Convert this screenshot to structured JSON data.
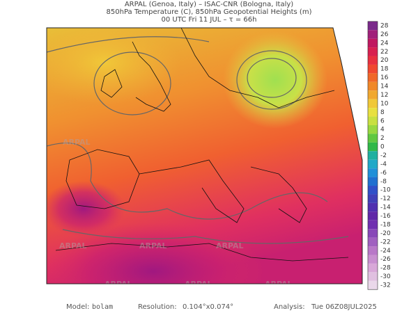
{
  "header": {
    "lines": [
      "ARPAL (Genoa, Italy)  –  ISAC-CNR (Bologna, Italy)",
      "850hPa Temperature (C), 850hPa Geopotential Heights (m)",
      "00 UTC Fri 11 JUL  –  τ = 66h"
    ]
  },
  "map": {
    "watermark": "ARPAL"
  },
  "colorbar": {
    "labels": [
      "28",
      "26",
      "24",
      "22",
      "20",
      "18",
      "16",
      "14",
      "12",
      "10",
      "8",
      "6",
      "4",
      "2",
      "0",
      "-2",
      "-4",
      "-6",
      "-8",
      "-10",
      "-12",
      "-14",
      "-16",
      "-18",
      "-20",
      "-22",
      "-24",
      "-26",
      "-28",
      "-30",
      "-32"
    ],
    "colors": [
      "#7a2a8a",
      "#a0207a",
      "#c01860",
      "#d82050",
      "#e83040",
      "#f04830",
      "#f06828",
      "#f08828",
      "#f0a830",
      "#f0c838",
      "#e8e040",
      "#c8e040",
      "#98d840",
      "#60c840",
      "#30b848",
      "#20b0a0",
      "#20a8c8",
      "#2090d8",
      "#2070d0",
      "#3050c8",
      "#4040b8",
      "#5030b0",
      "#6028a8",
      "#7030b0",
      "#8848b8",
      "#a060c0",
      "#b878c8",
      "#c890d0",
      "#d8a8d8",
      "#e0c0e0",
      "#ead8ea"
    ]
  },
  "footer": {
    "model_label": "Model:",
    "model": "bolam",
    "resolution_label": "Resolution:",
    "resolution": "0.104°x0.074°",
    "analysis_label": "Analysis:",
    "analysis": "Tue 06Z08JUL2025"
  }
}
